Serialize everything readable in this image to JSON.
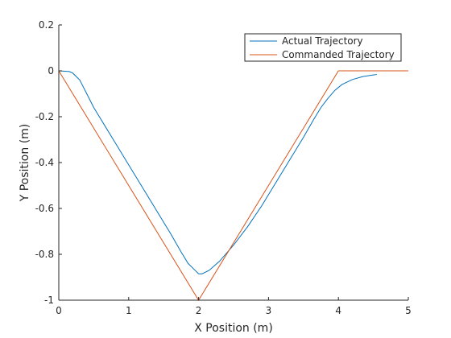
{
  "chart_data": {
    "type": "line",
    "xlabel": "X Position (m)",
    "ylabel": "Y Position (m)",
    "xlim": [
      0,
      5
    ],
    "ylim": [
      -1,
      0.2
    ],
    "xticks": [
      0,
      1,
      2,
      3,
      4,
      5
    ],
    "yticks": [
      -1,
      -0.8,
      -0.6,
      -0.4,
      -0.2,
      0,
      0.2
    ],
    "xtick_labels": [
      "0",
      "1",
      "2",
      "3",
      "4",
      "5"
    ],
    "ytick_labels": [
      "-1",
      "-0.8",
      "-0.6",
      "-0.4",
      "-0.2",
      "0",
      "0.2"
    ],
    "grid": false,
    "legend_position": "top-right",
    "series": [
      {
        "name": "Actual Trajectory",
        "color": "#0072BD",
        "x": [
          0,
          0.15,
          0.2,
          0.3,
          0.4,
          0.5,
          0.6,
          0.8,
          1.0,
          1.2,
          1.4,
          1.6,
          1.75,
          1.85,
          1.95,
          2.0,
          2.05,
          2.15,
          2.3,
          2.5,
          2.7,
          2.9,
          3.1,
          3.3,
          3.5,
          3.65,
          3.75,
          3.85,
          3.95,
          4.05,
          4.2,
          4.35,
          4.5,
          4.55
        ],
        "y": [
          0,
          -0.003,
          -0.01,
          -0.04,
          -0.1,
          -0.16,
          -0.21,
          -0.31,
          -0.41,
          -0.51,
          -0.61,
          -0.71,
          -0.79,
          -0.84,
          -0.87,
          -0.885,
          -0.885,
          -0.87,
          -0.83,
          -0.76,
          -0.68,
          -0.59,
          -0.49,
          -0.39,
          -0.29,
          -0.21,
          -0.16,
          -0.12,
          -0.085,
          -0.06,
          -0.038,
          -0.025,
          -0.018,
          -0.016
        ]
      },
      {
        "name": "Commanded Trajectory",
        "color": "#D95319",
        "x": [
          0,
          2,
          4,
          5
        ],
        "y": [
          0,
          -1,
          0,
          0
        ]
      }
    ]
  }
}
